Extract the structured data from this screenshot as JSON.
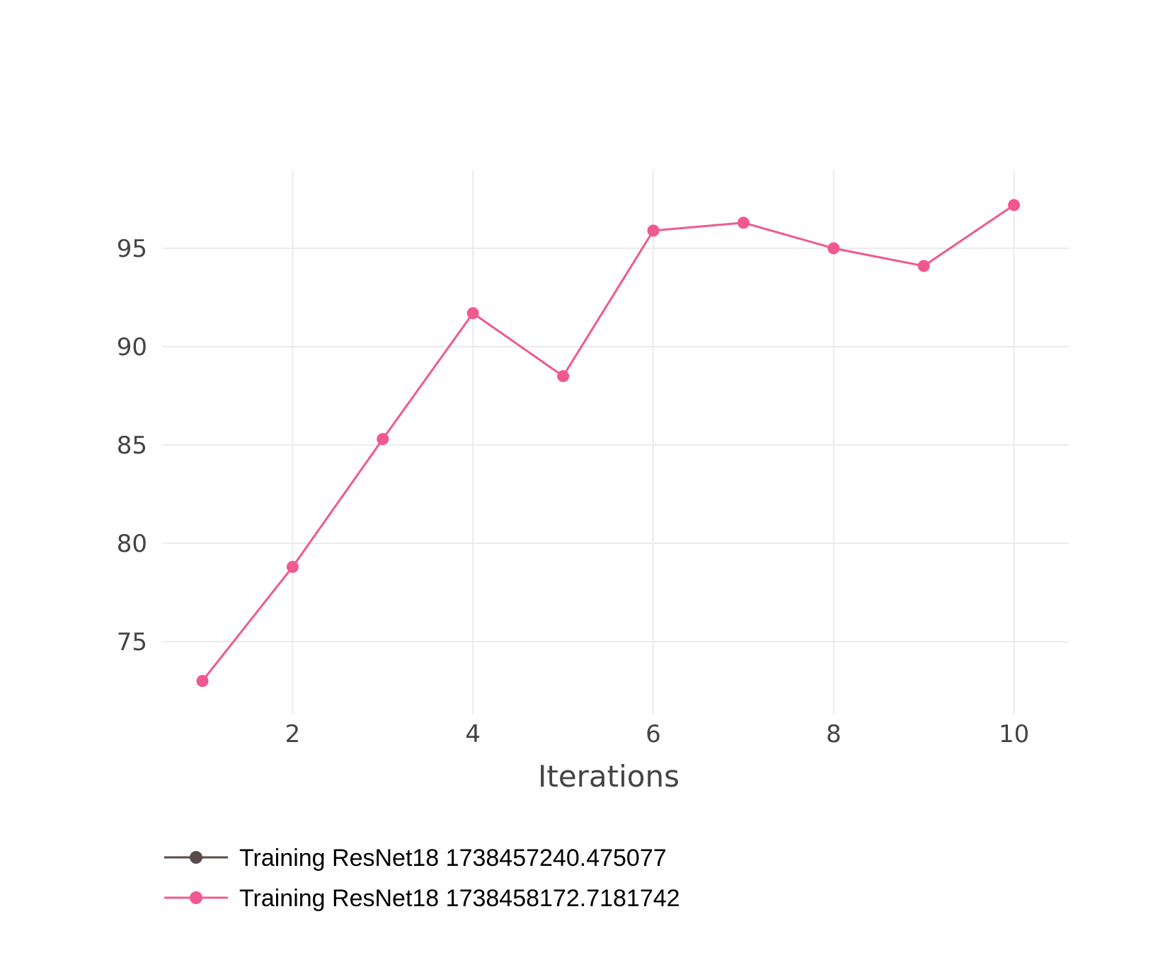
{
  "chart_data": {
    "type": "line",
    "title": "",
    "xlabel": "Iterations",
    "ylabel": "",
    "xlim": [
      0.5,
      10.3
    ],
    "ylim": [
      71,
      98.8
    ],
    "xticks": [
      2,
      4,
      6,
      8,
      10
    ],
    "yticks": [
      75,
      80,
      85,
      90,
      95
    ],
    "grid": true,
    "legend_position": "bottom-left",
    "series": [
      {
        "name": "Training ResNet18 1738457240.475077",
        "color": "#5b4a47",
        "x": [],
        "y": []
      },
      {
        "name": "Training ResNet18 1738458172.7181742",
        "color": "#f0598f",
        "x": [
          1,
          2,
          3,
          4,
          5,
          6,
          7,
          8,
          9,
          10
        ],
        "y": [
          73.0,
          78.8,
          85.3,
          91.7,
          88.5,
          95.9,
          96.3,
          95.0,
          94.1,
          97.2
        ]
      }
    ]
  }
}
